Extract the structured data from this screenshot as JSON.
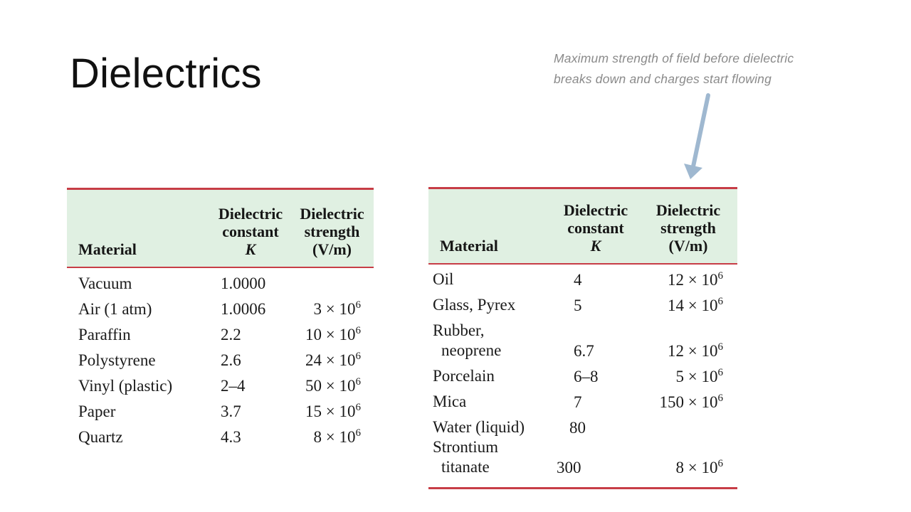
{
  "title": "Dielectrics",
  "annotation": {
    "line1": "Maximum strength of field before dielectric",
    "line2": "breaks down and charges start flowing"
  },
  "colors": {
    "rule": "#c73d46",
    "header_bg": "#e0f0e2",
    "arrow": "#9fb8d0",
    "annotation": "#8a8a8a"
  },
  "left_table": {
    "headers": {
      "material": "Material",
      "k_line1": "Dielectric",
      "k_line2": "constant",
      "k_line3": "K",
      "s_line1": "Dielectric",
      "s_line2": "strength",
      "s_line3": "(V/m)"
    },
    "rows": [
      {
        "material": "Vacuum",
        "k": "1.0000",
        "s": "",
        "exp": ""
      },
      {
        "material": "Air (1 atm)",
        "k": "1.0006",
        "s": "3 × 10",
        "exp": "6"
      },
      {
        "material": "Paraffin",
        "k": "2.2",
        "s": "10 × 10",
        "exp": "6"
      },
      {
        "material": "Polystyrene",
        "k": "2.6",
        "s": "24 × 10",
        "exp": "6"
      },
      {
        "material": "Vinyl (plastic)",
        "k": "2–4",
        "s": "50 × 10",
        "exp": "6"
      },
      {
        "material": "Paper",
        "k": "3.7",
        "s": "15 × 10",
        "exp": "6"
      },
      {
        "material": "Quartz",
        "k": "4.3",
        "s": "8 × 10",
        "exp": "6"
      }
    ]
  },
  "right_table": {
    "headers": {
      "material": "Material",
      "k_line1": "Dielectric",
      "k_line2": "constant",
      "k_line3": "K",
      "s_line1": "Dielectric",
      "s_line2": "strength",
      "s_line3": "(V/m)"
    },
    "rows": [
      {
        "material": "Oil",
        "material2": "",
        "k": "4",
        "s": "12 × 10",
        "exp": "6"
      },
      {
        "material": "Glass, Pyrex",
        "material2": "",
        "k": "5",
        "s": "14 × 10",
        "exp": "6"
      },
      {
        "material": "Rubber,",
        "material2": "neoprene",
        "k": "6.7",
        "s": "12 × 10",
        "exp": "6"
      },
      {
        "material": "Porcelain",
        "material2": "",
        "k": "6–8",
        "s": "5 × 10",
        "exp": "6"
      },
      {
        "material": "Mica",
        "material2": "",
        "k": "7",
        "s": "150 × 10",
        "exp": "6"
      },
      {
        "material": "Water (liquid)",
        "material2": "",
        "k": "80",
        "s": "",
        "exp": ""
      },
      {
        "material": "Strontium",
        "material2": "titanate",
        "k": "300",
        "s": "8 × 10",
        "exp": "6"
      }
    ]
  }
}
